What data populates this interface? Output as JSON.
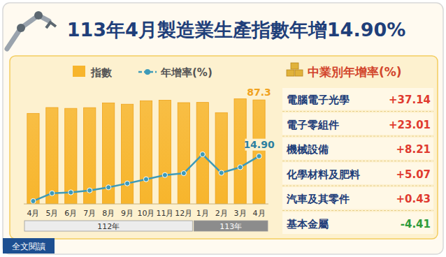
{
  "chart_data": {
    "type": "bar",
    "title": "113年4月製造業生產指數年增14.90%",
    "categories": [
      "4月",
      "5月",
      "6月",
      "7月",
      "8月",
      "9月",
      "10月",
      "11月",
      "12月",
      "1月",
      "2月",
      "3月",
      "4月"
    ],
    "category_groups": [
      {
        "label": "112年",
        "count": 9
      },
      {
        "label": "113年",
        "count": 4
      }
    ],
    "series": [
      {
        "name": "指數",
        "type": "bar",
        "color": "#f7b52c",
        "values": [
          76.0,
          80.9,
          80.2,
          80.8,
          84.8,
          83.7,
          86.6,
          87.1,
          85.0,
          85.2,
          76.6,
          88.3,
          87.3
        ],
        "data_labels": true,
        "value_labels": [
          null,
          null,
          null,
          null,
          null,
          null,
          null,
          null,
          null,
          null,
          null,
          null,
          "87.3"
        ]
      },
      {
        "name": "年增率(%)",
        "type": "line",
        "axis": "y2",
        "color": "#3d9ab8",
        "marker": "circle",
        "values": [
          -21.7,
          -15.3,
          -14.6,
          -13.0,
          -10.5,
          -7.3,
          -3.9,
          -0.5,
          1.0,
          16.4,
          1.3,
          5.9,
          14.9
        ],
        "data_labels": true,
        "value_labels": [
          null,
          null,
          null,
          null,
          null,
          null,
          null,
          null,
          null,
          null,
          null,
          null,
          "14.90"
        ]
      }
    ],
    "ylim": [
      0,
      102
    ],
    "y2lim": [
      -24,
      75
    ],
    "tick_labels": "x",
    "grid": false,
    "legend": "top-left"
  },
  "side_table": {
    "title": "中業別年增率(%)",
    "rows": [
      [
        "電腦電子光學",
        "+37.14"
      ],
      [
        "電子零組件",
        "+23.01"
      ],
      [
        "機械設備",
        "+8.21"
      ],
      [
        "化學材料及肥料",
        "+5.07"
      ],
      [
        "汽車及其零件",
        "+0.43"
      ],
      [
        "基本金屬",
        "-4.41"
      ]
    ]
  },
  "link": {
    "label": "全文閱讀"
  }
}
